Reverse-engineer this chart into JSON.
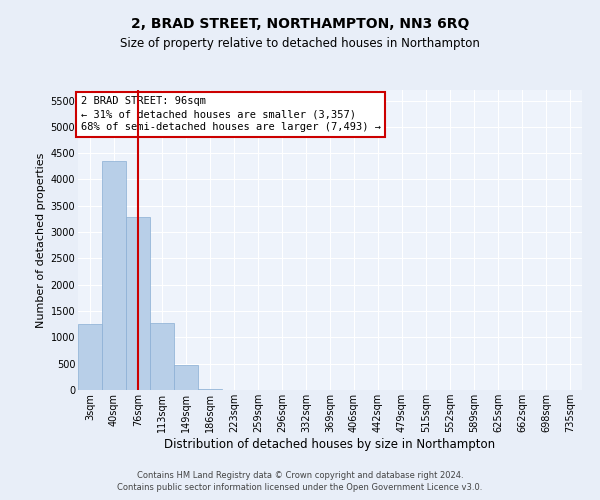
{
  "title": "2, BRAD STREET, NORTHAMPTON, NN3 6RQ",
  "subtitle": "Size of property relative to detached houses in Northampton",
  "xlabel": "Distribution of detached houses by size in Northampton",
  "ylabel": "Number of detached properties",
  "bar_labels": [
    "3sqm",
    "40sqm",
    "76sqm",
    "113sqm",
    "149sqm",
    "186sqm",
    "223sqm",
    "259sqm",
    "296sqm",
    "332sqm",
    "369sqm",
    "406sqm",
    "442sqm",
    "479sqm",
    "515sqm",
    "552sqm",
    "589sqm",
    "625sqm",
    "662sqm",
    "698sqm",
    "735sqm"
  ],
  "bar_values": [
    1250,
    4350,
    3280,
    1280,
    470,
    10,
    0,
    0,
    0,
    0,
    0,
    0,
    0,
    0,
    0,
    0,
    0,
    0,
    0,
    0,
    0
  ],
  "bar_color": "#b8cfe8",
  "bar_edge_color": "#8aafd4",
  "ylim_max": 5700,
  "yticks": [
    0,
    500,
    1000,
    1500,
    2000,
    2500,
    3000,
    3500,
    4000,
    4500,
    5000,
    5500
  ],
  "vline_x": 2.0,
  "vline_color": "#cc0000",
  "annotation_text": "2 BRAD STREET: 96sqm\n← 31% of detached houses are smaller (3,357)\n68% of semi-detached houses are larger (7,493) →",
  "annotation_box_facecolor": "#ffffff",
  "annotation_edge_color": "#cc0000",
  "bg_color": "#e8eef8",
  "plot_bg_color": "#eef3fb",
  "grid_color": "#ffffff",
  "footer_line1": "Contains HM Land Registry data © Crown copyright and database right 2024.",
  "footer_line2": "Contains public sector information licensed under the Open Government Licence v3.0.",
  "title_fontsize": 10,
  "subtitle_fontsize": 8.5,
  "xlabel_fontsize": 8.5,
  "ylabel_fontsize": 8,
  "tick_fontsize": 7,
  "annot_fontsize": 7.5,
  "footer_fontsize": 6
}
